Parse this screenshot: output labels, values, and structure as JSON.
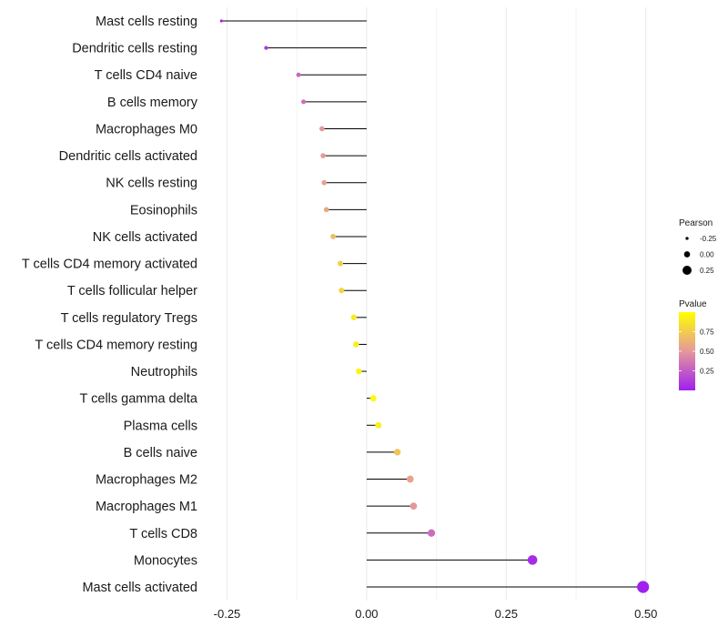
{
  "chart_data": {
    "type": "lollipop",
    "title": "",
    "xlabel": "",
    "ylabel": "",
    "xlim": [
      -0.285,
      0.52
    ],
    "x_ticks": [
      -0.25,
      0.0,
      0.25,
      0.5
    ],
    "x_tick_labels": [
      "-0.25",
      "0.00",
      "0.25",
      "0.50"
    ],
    "grid": true,
    "categories": [
      "Mast cells resting",
      "Dendritic cells resting",
      "T cells CD4 naive",
      "B cells memory",
      "Macrophages M0",
      "Dendritic cells activated",
      "NK cells resting",
      "Eosinophils",
      "NK cells activated",
      "T cells CD4 memory activated",
      "T cells follicular helper",
      "T cells regulatory  Tregs ",
      "T cells CD4 memory resting",
      "Neutrophils",
      "T cells gamma delta",
      "Plasma cells",
      "B cells naive",
      "Macrophages M2",
      "Macrophages M1",
      "T cells CD8",
      "Monocytes",
      "Mast cells activated"
    ],
    "pearson": [
      -0.26,
      -0.18,
      -0.122,
      -0.113,
      -0.08,
      -0.078,
      -0.076,
      -0.072,
      -0.06,
      -0.047,
      -0.045,
      -0.023,
      -0.019,
      -0.014,
      0.012,
      0.021,
      0.055,
      0.078,
      0.084,
      0.116,
      0.297,
      0.495
    ],
    "pvalue": [
      0.02,
      0.1,
      0.3,
      0.33,
      0.5,
      0.52,
      0.54,
      0.58,
      0.67,
      0.77,
      0.79,
      0.9,
      0.92,
      0.95,
      0.97,
      0.93,
      0.72,
      0.55,
      0.5,
      0.32,
      0.05,
      0.0
    ],
    "legend_size": {
      "title": "Pearson",
      "labels": [
        "-0.25",
        "0.00",
        "0.25"
      ],
      "values": [
        -0.25,
        0.0,
        0.25
      ],
      "placement": "right"
    },
    "legend_color": {
      "title": "Pvalue",
      "labels": [
        "0.75",
        "0.50",
        "0.25"
      ],
      "values": [
        0.75,
        0.5,
        0.25
      ],
      "range": [
        0.0,
        1.0
      ],
      "low_color": "#a020f0",
      "mid_color": "#e5989b",
      "high_color": "#ffff00",
      "placement": "right"
    },
    "colors": {
      "stem": "#000000",
      "grid": "#ebebeb"
    }
  }
}
